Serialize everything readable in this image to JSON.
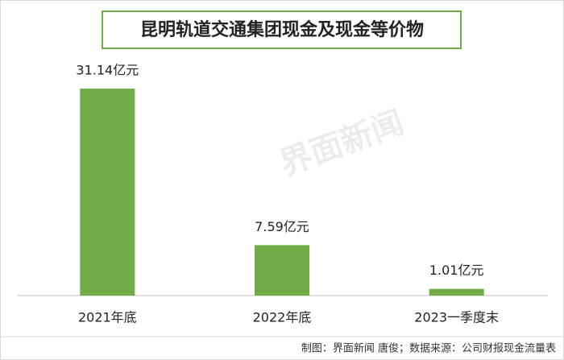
{
  "chart_data": {
    "type": "bar",
    "title": "昆明轨道交通集团现金及现金等价物",
    "categories": [
      "2021年底",
      "2022年底",
      "2023一季度末"
    ],
    "values": [
      31.14,
      7.59,
      1.01
    ],
    "value_labels": [
      "31.14亿元",
      "7.59亿元",
      "1.01亿元"
    ],
    "color": "#70ad47",
    "watermark": "界面新闻",
    "source": "制图：界面新闻 唐俊；数据来源：公司财报现金流量表"
  }
}
